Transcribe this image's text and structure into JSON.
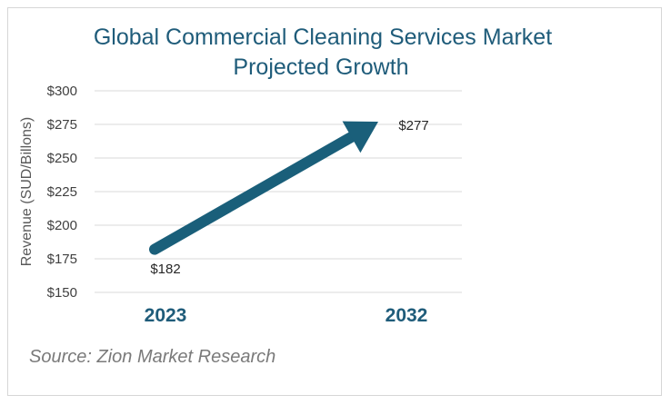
{
  "chart_data": {
    "type": "line",
    "title_lines": [
      "Global Commercial Cleaning Services Market",
      "Projected Growth"
    ],
    "ylabel": "Revenue (SUD/Billons)",
    "xlabel": "",
    "categories": [
      "2023",
      "2032"
    ],
    "values": [
      182,
      277
    ],
    "data_labels": [
      "$182",
      "$277"
    ],
    "ylim": [
      150,
      300
    ],
    "yticks": [
      150,
      175,
      200,
      225,
      250,
      275,
      300
    ],
    "ytick_labels": [
      "$150",
      "$175",
      "$200",
      "$225",
      "$250",
      "$275",
      "$300"
    ],
    "grid": true,
    "legend": "none",
    "colors": {
      "arrow": "#1a5f7a",
      "title": "#1f5c7a",
      "grid": "#d9d9d9",
      "category": "#1f5c7a"
    }
  },
  "source": "Source: Zion Market Research"
}
